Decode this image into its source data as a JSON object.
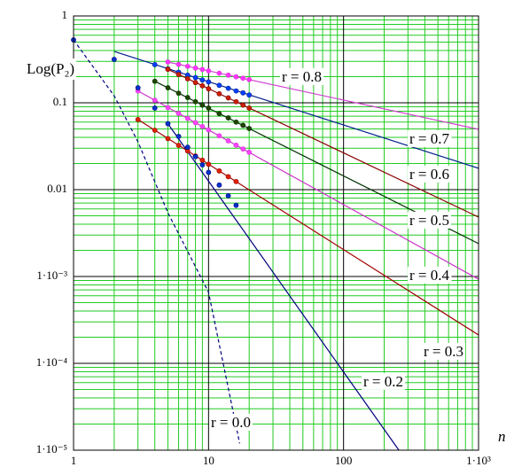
{
  "chart_data": {
    "type": "line",
    "xscale": "log",
    "yscale": "log",
    "grid": true,
    "ylabel": "Log(P₂)",
    "xlabel": "n",
    "xlim": [
      1,
      1000
    ],
    "ylim": [
      1e-05,
      1
    ],
    "xticks": [
      1,
      10,
      100,
      {
        "value": 1000,
        "label": "1·10³"
      }
    ],
    "yticks": [
      {
        "value": 1e-05,
        "label": "1·10⁻⁵"
      },
      {
        "value": 0.0001,
        "label": "1·10⁻⁴"
      },
      {
        "value": 0.001,
        "label": "1·10⁻³"
      },
      0.01,
      0.1,
      1
    ],
    "series": [
      {
        "name": "r = 0.8",
        "color": "#d040d0",
        "dot_color": "#ff33ff",
        "dashed": false,
        "x": [
          5,
          1000
        ],
        "values": [
          0.295,
          0.0495
        ],
        "points_x": [
          5,
          6,
          7,
          8,
          9,
          10,
          12,
          14,
          16,
          18,
          20
        ],
        "points_values": [
          0.295,
          0.277,
          0.263,
          0.251,
          0.242,
          0.233,
          0.219,
          0.208,
          0.199,
          0.192,
          0.185
        ]
      },
      {
        "name": "r = 0.7",
        "color": "#00208b",
        "dot_color": "#0040ff",
        "dashed": false,
        "x": [
          2,
          1000
        ],
        "values": [
          0.39,
          0.0176
        ],
        "points_x": [
          4,
          5,
          6,
          7,
          8,
          9,
          10,
          12,
          14,
          16,
          18,
          20
        ],
        "points_values": [
          0.275,
          0.246,
          0.225,
          0.208,
          0.195,
          0.183,
          0.174,
          0.159,
          0.147,
          0.137,
          0.13,
          0.123
        ]
      },
      {
        "name": "r = 0.6",
        "color": "#8b0000",
        "dot_color": "#c82000",
        "dashed": false,
        "x": [
          5,
          1000
        ],
        "values": [
          0.243,
          0.00483
        ],
        "points_x": [
          5,
          6,
          7,
          8,
          9,
          10,
          12,
          14,
          16,
          18,
          20
        ],
        "points_values": [
          0.243,
          0.212,
          0.189,
          0.171,
          0.157,
          0.145,
          0.127,
          0.114,
          0.103,
          0.094,
          0.087
        ]
      },
      {
        "name": "r = 0.5",
        "color": "#003300",
        "dot_color": "#224400",
        "dashed": false,
        "x": [
          4,
          1000
        ],
        "values": [
          0.177,
          0.00239
        ],
        "points_x": [
          4,
          5,
          6,
          7,
          8,
          9,
          10,
          12,
          14,
          16,
          18,
          20
        ],
        "points_values": [
          0.177,
          0.149,
          0.129,
          0.115,
          0.103,
          0.094,
          0.087,
          0.075,
          0.067,
          0.06,
          0.055,
          0.0506
        ]
      },
      {
        "name": "r = 0.4",
        "color": "#cc33cc",
        "dot_color": "#ff44ff",
        "dashed": false,
        "x": [
          3,
          1000
        ],
        "values": [
          0.137,
          0.00093
        ],
        "points_x": [
          3,
          4,
          5,
          6,
          7,
          8,
          9,
          10,
          12,
          14,
          16,
          18,
          20
        ],
        "points_values": [
          0.137,
          0.107,
          0.088,
          0.0755,
          0.0662,
          0.059,
          0.0533,
          0.0488,
          0.0417,
          0.0365,
          0.0325,
          0.0294,
          0.0269
        ]
      },
      {
        "name": "r = 0.3",
        "color": "#a00000",
        "dot_color": "#dd2200",
        "dashed": false,
        "x": [
          3,
          1000
        ],
        "values": [
          0.0641,
          0.000212
        ],
        "points_x": [
          3,
          4,
          5,
          6,
          7,
          8,
          9,
          10,
          12,
          14,
          16
        ],
        "points_values": [
          0.0641,
          0.0483,
          0.0387,
          0.0324,
          0.0279,
          0.0244,
          0.0218,
          0.0196,
          0.0164,
          0.0141,
          0.0124
        ]
      },
      {
        "name": "r = 0.2",
        "color": "#000080",
        "dot_color": "#0033cc",
        "dashed": false,
        "x": [
          5,
          257
        ],
        "values": [
          0.0575,
          1e-05
        ],
        "points_x": [
          2,
          3,
          4,
          5,
          6,
          7,
          8,
          9,
          10,
          12,
          14,
          16
        ],
        "points_values": [
          0.316,
          0.149,
          0.087,
          0.0575,
          0.041,
          0.0308,
          0.024,
          0.0193,
          0.0158,
          0.0113,
          0.0085,
          0.0066
        ]
      },
      {
        "name": "r = 0.0",
        "color": "#000080",
        "dot_color": "#0033cc",
        "dashed": true,
        "x": [
          1,
          2,
          3,
          5,
          10,
          17
        ],
        "values": [
          0.53,
          0.12,
          0.0355,
          0.0054,
          0.00066,
          1.2e-05
        ],
        "points_x": [
          1
        ],
        "points_values": [
          0.53
        ]
      }
    ]
  }
}
